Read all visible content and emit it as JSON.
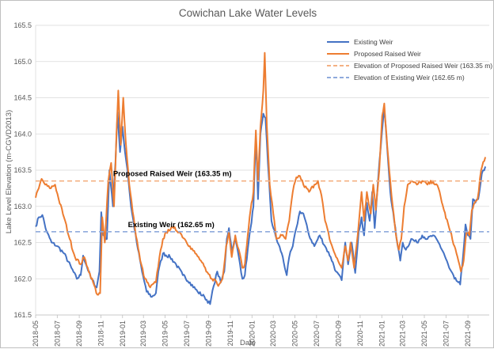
{
  "chart_data": {
    "type": "line",
    "title": "Cowichan Lake Water Levels",
    "xlabel": "Date",
    "ylabel": "Lake Level Elevation (m-CGVD2013)",
    "ylim": [
      161.5,
      165.5
    ],
    "yticks": [
      "161.5",
      "162.0",
      "162.5",
      "163.0",
      "163.5",
      "164.0",
      "164.5",
      "165.0",
      "165.5"
    ],
    "xlim": [
      "2018-05-01",
      "2021-10-31"
    ],
    "xticks": [
      "2018-05",
      "2018-07",
      "2018-09",
      "2018-11",
      "2019-01",
      "2019-03",
      "2019-05",
      "2019-07",
      "2019-09",
      "2019-11",
      "2020-01",
      "2020-03",
      "2020-05",
      "2020-07",
      "2020-09",
      "2020-11",
      "2021-01",
      "2021-03",
      "2021-05",
      "2021-07",
      "2021-09"
    ],
    "grid": "horizontal",
    "legend_position": "top-right",
    "series": [
      {
        "name": "Existing Weir",
        "color": "#4472c4",
        "points": [
          [
            "2018-05-01",
            162.72
          ],
          [
            "2018-05-10",
            162.85
          ],
          [
            "2018-05-20",
            162.88
          ],
          [
            "2018-06-01",
            162.65
          ],
          [
            "2018-06-15",
            162.5
          ],
          [
            "2018-07-01",
            162.45
          ],
          [
            "2018-07-20",
            162.35
          ],
          [
            "2018-08-10",
            162.15
          ],
          [
            "2018-08-25",
            162.0
          ],
          [
            "2018-09-05",
            162.05
          ],
          [
            "2018-09-12",
            162.32
          ],
          [
            "2018-09-20",
            162.2
          ],
          [
            "2018-10-05",
            162.0
          ],
          [
            "2018-10-20",
            161.88
          ],
          [
            "2018-10-28",
            162.1
          ],
          [
            "2018-11-02",
            162.92
          ],
          [
            "2018-11-08",
            162.6
          ],
          [
            "2018-11-18",
            162.55
          ],
          [
            "2018-11-25",
            163.5
          ],
          [
            "2018-12-05",
            163.0
          ],
          [
            "2018-12-12",
            163.6
          ],
          [
            "2018-12-18",
            164.3
          ],
          [
            "2018-12-25",
            163.75
          ],
          [
            "2019-01-01",
            164.1
          ],
          [
            "2019-01-08",
            163.75
          ],
          [
            "2019-01-15",
            163.5
          ],
          [
            "2019-01-25",
            163.0
          ],
          [
            "2019-02-10",
            162.5
          ],
          [
            "2019-02-25",
            162.1
          ],
          [
            "2019-03-10",
            161.82
          ],
          [
            "2019-03-25",
            161.75
          ],
          [
            "2019-04-05",
            161.8
          ],
          [
            "2019-04-12",
            162.1
          ],
          [
            "2019-04-25",
            162.35
          ],
          [
            "2019-05-15",
            162.3
          ],
          [
            "2019-06-01",
            162.2
          ],
          [
            "2019-06-20",
            162.05
          ],
          [
            "2019-07-10",
            161.95
          ],
          [
            "2019-08-01",
            161.82
          ],
          [
            "2019-08-20",
            161.75
          ],
          [
            "2019-09-05",
            161.65
          ],
          [
            "2019-09-15",
            161.9
          ],
          [
            "2019-09-25",
            162.1
          ],
          [
            "2019-10-05",
            161.95
          ],
          [
            "2019-10-15",
            162.1
          ],
          [
            "2019-10-22",
            162.55
          ],
          [
            "2019-10-28",
            162.7
          ],
          [
            "2019-11-05",
            162.4
          ],
          [
            "2019-11-15",
            162.55
          ],
          [
            "2019-11-25",
            162.3
          ],
          [
            "2019-12-05",
            162.0
          ],
          [
            "2019-12-12",
            162.05
          ],
          [
            "2019-12-20",
            162.4
          ],
          [
            "2019-12-28",
            162.7
          ],
          [
            "2020-01-05",
            163.0
          ],
          [
            "2020-01-12",
            163.95
          ],
          [
            "2020-01-18",
            163.1
          ],
          [
            "2020-01-25",
            164.0
          ],
          [
            "2020-02-02",
            164.28
          ],
          [
            "2020-02-08",
            164.22
          ],
          [
            "2020-02-15",
            163.6
          ],
          [
            "2020-02-25",
            162.8
          ],
          [
            "2020-03-10",
            162.55
          ],
          [
            "2020-03-25",
            162.35
          ],
          [
            "2020-04-08",
            162.05
          ],
          [
            "2020-04-15",
            162.3
          ],
          [
            "2020-04-25",
            162.45
          ],
          [
            "2020-05-05",
            162.7
          ],
          [
            "2020-05-15",
            162.93
          ],
          [
            "2020-05-25",
            162.9
          ],
          [
            "2020-06-10",
            162.6
          ],
          [
            "2020-06-25",
            162.45
          ],
          [
            "2020-07-10",
            162.6
          ],
          [
            "2020-07-25",
            162.45
          ],
          [
            "2020-08-10",
            162.3
          ],
          [
            "2020-08-25",
            162.1
          ],
          [
            "2020-09-10",
            161.98
          ],
          [
            "2020-09-20",
            162.5
          ],
          [
            "2020-09-28",
            162.2
          ],
          [
            "2020-10-08",
            162.5
          ],
          [
            "2020-10-18",
            162.08
          ],
          [
            "2020-10-28",
            162.65
          ],
          [
            "2020-11-05",
            162.85
          ],
          [
            "2020-11-12",
            162.6
          ],
          [
            "2020-11-20",
            163.05
          ],
          [
            "2020-11-28",
            162.8
          ],
          [
            "2020-12-05",
            163.2
          ],
          [
            "2020-12-12",
            162.7
          ],
          [
            "2020-12-22",
            163.4
          ],
          [
            "2021-01-01",
            164.0
          ],
          [
            "2021-01-08",
            164.35
          ],
          [
            "2021-01-15",
            163.9
          ],
          [
            "2021-01-25",
            163.2
          ],
          [
            "2021-02-05",
            162.8
          ],
          [
            "2021-02-15",
            162.45
          ],
          [
            "2021-02-22",
            162.25
          ],
          [
            "2021-03-01",
            162.5
          ],
          [
            "2021-03-10",
            162.4
          ],
          [
            "2021-03-25",
            162.55
          ],
          [
            "2021-04-10",
            162.5
          ],
          [
            "2021-04-25",
            162.6
          ],
          [
            "2021-05-10",
            162.55
          ],
          [
            "2021-05-25",
            162.6
          ],
          [
            "2021-06-10",
            162.5
          ],
          [
            "2021-06-25",
            162.35
          ],
          [
            "2021-07-10",
            162.15
          ],
          [
            "2021-07-25",
            162.0
          ],
          [
            "2021-08-05",
            161.95
          ],
          [
            "2021-08-10",
            161.92
          ],
          [
            "2021-08-18",
            162.3
          ],
          [
            "2021-08-25",
            162.75
          ],
          [
            "2021-09-01",
            162.6
          ],
          [
            "2021-09-08",
            162.55
          ],
          [
            "2021-09-15",
            163.1
          ],
          [
            "2021-09-22",
            163.05
          ],
          [
            "2021-09-30",
            163.1
          ],
          [
            "2021-10-10",
            163.45
          ],
          [
            "2021-10-20",
            163.55
          ]
        ]
      },
      {
        "name": "Proposed Raised Weir",
        "color": "#ed7d31",
        "points": [
          [
            "2018-05-01",
            163.12
          ],
          [
            "2018-05-10",
            163.25
          ],
          [
            "2018-05-18",
            163.38
          ],
          [
            "2018-05-28",
            163.3
          ],
          [
            "2018-06-10",
            163.25
          ],
          [
            "2018-06-25",
            163.3
          ],
          [
            "2018-07-05",
            163.1
          ],
          [
            "2018-07-20",
            162.85
          ],
          [
            "2018-08-05",
            162.55
          ],
          [
            "2018-08-20",
            162.3
          ],
          [
            "2018-09-05",
            162.2
          ],
          [
            "2018-09-15",
            162.3
          ],
          [
            "2018-09-25",
            162.15
          ],
          [
            "2018-10-10",
            161.95
          ],
          [
            "2018-10-22",
            161.78
          ],
          [
            "2018-10-30",
            161.8
          ],
          [
            "2018-11-05",
            162.85
          ],
          [
            "2018-11-12",
            162.5
          ],
          [
            "2018-11-22",
            163.35
          ],
          [
            "2018-11-30",
            163.6
          ],
          [
            "2018-12-08",
            163.0
          ],
          [
            "2018-12-15",
            164.0
          ],
          [
            "2018-12-20",
            164.6
          ],
          [
            "2018-12-27",
            163.85
          ],
          [
            "2019-01-03",
            164.5
          ],
          [
            "2019-01-10",
            163.9
          ],
          [
            "2019-01-20",
            163.3
          ],
          [
            "2019-02-05",
            162.7
          ],
          [
            "2019-02-20",
            162.25
          ],
          [
            "2019-03-05",
            162.0
          ],
          [
            "2019-03-20",
            161.88
          ],
          [
            "2019-04-05",
            161.95
          ],
          [
            "2019-04-15",
            162.3
          ],
          [
            "2019-04-25",
            162.55
          ],
          [
            "2019-05-10",
            162.68
          ],
          [
            "2019-05-25",
            162.7
          ],
          [
            "2019-06-10",
            162.65
          ],
          [
            "2019-06-25",
            162.55
          ],
          [
            "2019-07-10",
            162.45
          ],
          [
            "2019-07-25",
            162.35
          ],
          [
            "2019-08-10",
            162.25
          ],
          [
            "2019-08-25",
            162.1
          ],
          [
            "2019-09-10",
            162.0
          ],
          [
            "2019-09-20",
            161.98
          ],
          [
            "2019-09-28",
            161.9
          ],
          [
            "2019-10-10",
            162.0
          ],
          [
            "2019-10-20",
            162.45
          ],
          [
            "2019-10-28",
            162.65
          ],
          [
            "2019-11-05",
            162.3
          ],
          [
            "2019-11-15",
            162.6
          ],
          [
            "2019-11-25",
            162.4
          ],
          [
            "2019-12-05",
            162.15
          ],
          [
            "2019-12-12",
            162.2
          ],
          [
            "2019-12-20",
            162.6
          ],
          [
            "2019-12-28",
            162.95
          ],
          [
            "2020-01-05",
            163.2
          ],
          [
            "2020-01-12",
            164.05
          ],
          [
            "2020-01-18",
            163.35
          ],
          [
            "2020-01-25",
            164.1
          ],
          [
            "2020-02-02",
            164.6
          ],
          [
            "2020-02-06",
            165.12
          ],
          [
            "2020-02-12",
            164.1
          ],
          [
            "2020-02-20",
            163.3
          ],
          [
            "2020-03-01",
            162.9
          ],
          [
            "2020-03-10",
            162.55
          ],
          [
            "2020-03-25",
            162.6
          ],
          [
            "2020-04-05",
            162.55
          ],
          [
            "2020-04-15",
            162.8
          ],
          [
            "2020-04-25",
            163.2
          ],
          [
            "2020-05-05",
            163.4
          ],
          [
            "2020-05-15",
            163.42
          ],
          [
            "2020-05-25",
            163.3
          ],
          [
            "2020-06-10",
            163.2
          ],
          [
            "2020-06-25",
            163.3
          ],
          [
            "2020-07-05",
            163.35
          ],
          [
            "2020-07-15",
            163.15
          ],
          [
            "2020-07-25",
            162.8
          ],
          [
            "2020-08-10",
            162.5
          ],
          [
            "2020-08-25",
            162.3
          ],
          [
            "2020-09-10",
            162.15
          ],
          [
            "2020-09-20",
            162.45
          ],
          [
            "2020-09-28",
            162.25
          ],
          [
            "2020-10-05",
            162.5
          ],
          [
            "2020-10-15",
            162.15
          ],
          [
            "2020-10-25",
            162.6
          ],
          [
            "2020-11-05",
            163.2
          ],
          [
            "2020-11-12",
            162.8
          ],
          [
            "2020-11-20",
            163.2
          ],
          [
            "2020-12-01",
            162.9
          ],
          [
            "2020-12-08",
            163.3
          ],
          [
            "2020-12-15",
            162.95
          ],
          [
            "2020-12-25",
            163.5
          ],
          [
            "2021-01-02",
            164.25
          ],
          [
            "2021-01-08",
            164.42
          ],
          [
            "2021-01-14",
            164.0
          ],
          [
            "2021-01-22",
            163.5
          ],
          [
            "2021-02-01",
            163.0
          ],
          [
            "2021-02-10",
            162.6
          ],
          [
            "2021-02-18",
            162.4
          ],
          [
            "2021-02-25",
            162.55
          ],
          [
            "2021-03-05",
            163.0
          ],
          [
            "2021-03-15",
            163.3
          ],
          [
            "2021-03-25",
            163.35
          ],
          [
            "2021-04-10",
            163.3
          ],
          [
            "2021-04-25",
            163.35
          ],
          [
            "2021-05-10",
            163.3
          ],
          [
            "2021-05-25",
            163.35
          ],
          [
            "2021-06-10",
            163.25
          ],
          [
            "2021-06-25",
            162.95
          ],
          [
            "2021-07-10",
            162.7
          ],
          [
            "2021-07-25",
            162.45
          ],
          [
            "2021-08-05",
            162.25
          ],
          [
            "2021-08-12",
            162.1
          ],
          [
            "2021-08-20",
            162.25
          ],
          [
            "2021-08-28",
            162.65
          ],
          [
            "2021-09-05",
            162.6
          ],
          [
            "2021-09-12",
            162.95
          ],
          [
            "2021-09-20",
            163.05
          ],
          [
            "2021-09-28",
            163.1
          ],
          [
            "2021-10-08",
            163.5
          ],
          [
            "2021-10-20",
            163.68
          ]
        ]
      },
      {
        "name": "Elevation of Proposed Raised Weir (163.35 m)",
        "color": "#f4b183",
        "dashed": true,
        "constant": 163.35
      },
      {
        "name": "Elevation of Existing Weir (162.65 m)",
        "color": "#8faadc",
        "dashed": true,
        "constant": 162.65
      }
    ],
    "annotations": [
      {
        "text": "Proposed Raised Weir (163.35 m)",
        "x": "2018-11-22",
        "y": 163.35
      },
      {
        "text": "Existing Weir (162.65 m)",
        "x": "2019-01-03",
        "y": 162.65
      }
    ]
  }
}
